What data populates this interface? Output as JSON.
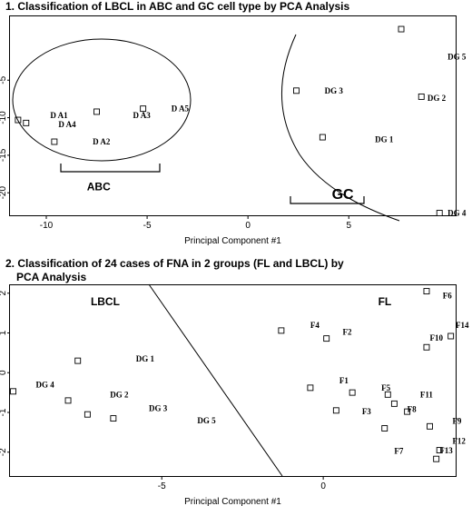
{
  "chart_data": [
    {
      "type": "scatter",
      "title": "1. Classification of LBCL in ABC and GC cell type by PCA Analysis",
      "xlabel": "Principal Component #1",
      "ylabel": "",
      "xlim": [
        -11.8,
        10.3
      ],
      "ylim": [
        -23,
        3.5
      ],
      "x_ticks": [
        "-10",
        "-5",
        "0",
        "5"
      ],
      "x_tick_values": [
        -10,
        -5,
        0,
        5
      ],
      "y_ticks": [
        "-5",
        "-10",
        "-15",
        "-20"
      ],
      "y_tick_values": [
        -5,
        -10,
        -15,
        -20
      ],
      "points": [
        {
          "x": -11.4,
          "y": -10.3,
          "label": ""
        },
        {
          "x": -11.0,
          "y": -10.7,
          "label": ""
        },
        {
          "x": -9.6,
          "y": -13.2,
          "label": ""
        },
        {
          "x": -7.5,
          "y": -9.2,
          "label": ""
        },
        {
          "x": -5.2,
          "y": -8.8,
          "label": ""
        },
        {
          "x": 2.4,
          "y": -6.4,
          "label": ""
        },
        {
          "x": 3.7,
          "y": -12.6,
          "label": ""
        },
        {
          "x": 7.6,
          "y": 1.8,
          "label": ""
        },
        {
          "x": 8.6,
          "y": -7.2,
          "label": ""
        },
        {
          "x": 9.5,
          "y": -22.7,
          "label": ""
        }
      ],
      "labels": [
        {
          "text": "D A1",
          "x": -9.8,
          "y": -9.7
        },
        {
          "text": "D A4",
          "x": -9.4,
          "y": -10.9
        },
        {
          "text": "D A2",
          "x": -7.7,
          "y": -13.2
        },
        {
          "text": "D A3",
          "x": -5.7,
          "y": -9.7
        },
        {
          "text": "D A5",
          "x": -3.8,
          "y": -8.8
        },
        {
          "text": "DG  3",
          "x": 3.8,
          "y": -6.4
        },
        {
          "text": "DG  1",
          "x": 6.3,
          "y": -12.9
        },
        {
          "text": "DG  5",
          "x": 9.9,
          "y": -1.9
        },
        {
          "text": "DG  2",
          "x": 8.9,
          "y": -7.4
        },
        {
          "text": "DG  4",
          "x": 9.9,
          "y": -22.7
        }
      ],
      "groups": [
        {
          "name": "ABC",
          "x": -7.4,
          "y": -19.7
        },
        {
          "name": "GC",
          "x": 4.7,
          "y": -20.8
        }
      ]
    },
    {
      "type": "scatter",
      "title": "2. Classification of 24 cases of FNA in 2 groups (FL and LBCL) by PCA Analysis",
      "xlabel": "Principal Component #1",
      "ylabel": "",
      "xlim": [
        -9.7,
        4.1
      ],
      "ylim": [
        -2.6,
        2.2
      ],
      "x_ticks": [
        "-5",
        "0"
      ],
      "x_tick_values": [
        -5,
        0
      ],
      "y_ticks": [
        "2",
        "1",
        "0",
        "-1",
        "-2"
      ],
      "y_tick_values": [
        2,
        1,
        0,
        -1,
        -2
      ],
      "points": [
        {
          "x": -9.6,
          "y": -0.47,
          "label": ""
        },
        {
          "x": -7.6,
          "y": 0.3,
          "label": ""
        },
        {
          "x": -7.9,
          "y": -0.7,
          "label": ""
        },
        {
          "x": -7.3,
          "y": -1.05,
          "label": ""
        },
        {
          "x": -6.5,
          "y": -1.15,
          "label": ""
        },
        {
          "x": -1.3,
          "y": 1.06,
          "label": ""
        },
        {
          "x": 0.1,
          "y": 0.86,
          "label": ""
        },
        {
          "x": -0.4,
          "y": -0.38,
          "label": ""
        },
        {
          "x": 0.9,
          "y": -0.5,
          "label": ""
        },
        {
          "x": 0.4,
          "y": -0.95,
          "label": ""
        },
        {
          "x": 1.9,
          "y": -1.4,
          "label": ""
        },
        {
          "x": 2.2,
          "y": -0.78,
          "label": ""
        },
        {
          "x": 2.0,
          "y": -0.55,
          "label": ""
        },
        {
          "x": 3.2,
          "y": 2.05,
          "label": ""
        },
        {
          "x": 3.2,
          "y": 0.64,
          "label": ""
        },
        {
          "x": 3.95,
          "y": 0.92,
          "label": ""
        },
        {
          "x": 3.3,
          "y": -1.35,
          "label": ""
        },
        {
          "x": 3.6,
          "y": -1.95,
          "label": ""
        },
        {
          "x": 3.5,
          "y": -2.17,
          "label": ""
        },
        {
          "x": 2.6,
          "y": -0.98,
          "label": ""
        }
      ],
      "labels": [
        {
          "text": "DG  4",
          "x": -8.9,
          "y": -0.3
        },
        {
          "text": "DG  1",
          "x": -5.8,
          "y": 0.35
        },
        {
          "text": "DG  2",
          "x": -6.6,
          "y": -0.55
        },
        {
          "text": "DG  3",
          "x": -5.4,
          "y": -0.9
        },
        {
          "text": "DG  5",
          "x": -3.9,
          "y": -1.2
        },
        {
          "text": "F4",
          "x": -0.4,
          "y": 1.2
        },
        {
          "text": "F2",
          "x": 0.6,
          "y": 1.02
        },
        {
          "text": "F1",
          "x": 0.5,
          "y": -0.2
        },
        {
          "text": "F5",
          "x": 1.8,
          "y": -0.38
        },
        {
          "text": "F3",
          "x": 1.2,
          "y": -0.98
        },
        {
          "text": "F6",
          "x": 3.7,
          "y": 1.94
        },
        {
          "text": "F14",
          "x": 4.1,
          "y": 1.2
        },
        {
          "text": "F10",
          "x": 3.3,
          "y": 0.87
        },
        {
          "text": "F11",
          "x": 3.0,
          "y": -0.55
        },
        {
          "text": "F8",
          "x": 2.6,
          "y": -0.92
        },
        {
          "text": "F9",
          "x": 4.0,
          "y": -1.22
        },
        {
          "text": "F12",
          "x": 4.0,
          "y": -1.72
        },
        {
          "text": "F13",
          "x": 3.6,
          "y": -1.96
        },
        {
          "text": "F7",
          "x": 2.2,
          "y": -1.97
        }
      ],
      "groups": [
        {
          "name": "LBCL",
          "x": -7.2,
          "y": 1.7
        },
        {
          "name": "FL",
          "x": 1.7,
          "y": 1.7
        }
      ]
    }
  ]
}
